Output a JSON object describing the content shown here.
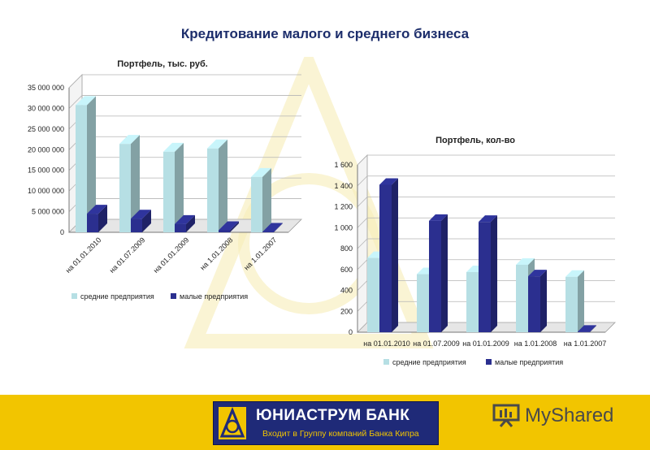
{
  "page": {
    "title": "Кредитование малого и среднего бизнеса"
  },
  "colors": {
    "title": "#1c2d6b",
    "medium": "#b6dfe4",
    "small": "#2b2f8f",
    "footer": "#f2c500",
    "logo_bg": "#1f2a78"
  },
  "chart_data": [
    {
      "type": "bar",
      "title": "Портфель, тыс. руб.",
      "categories": [
        "на 01.01.2010",
        "на 01.07.2009",
        "на 01.01.2009",
        "на 1.01.2008",
        "на 1.01.2007"
      ],
      "series": [
        {
          "name": "средние предприятия",
          "values": [
            30800000,
            21400000,
            19500000,
            20300000,
            13400000
          ]
        },
        {
          "name": "малые предприятия",
          "values": [
            4500000,
            3300000,
            2000000,
            500000,
            100000
          ]
        }
      ],
      "yticks": [
        "35 000 000",
        "30 000 000",
        "25 000 000",
        "20 000 000",
        "15 000 000",
        "10 000 000",
        "5 000 000",
        "0"
      ],
      "ylim": [
        0,
        35000000
      ],
      "grid": true,
      "legend": "bottom"
    },
    {
      "type": "bar",
      "title": "Портфель, кол-во",
      "categories": [
        "на 01.01.2010",
        "на 01.07.2009",
        "на 01.01.2009",
        "на 1.01.2008",
        "на 1.01.2007"
      ],
      "series": [
        {
          "name": "средние предприятия",
          "values": [
            710,
            555,
            575,
            645,
            530
          ]
        },
        {
          "name": "малые предприятия",
          "values": [
            1410,
            1065,
            1055,
            535,
            5
          ]
        }
      ],
      "yticks": [
        "1 600",
        "1 400",
        "1 200",
        "1 000",
        "800",
        "600",
        "400",
        "200",
        "0"
      ],
      "ylim": [
        0,
        1600
      ],
      "grid": true,
      "legend": "bottom"
    }
  ],
  "footer": {
    "bank_name": "ЮНИАСТРУМ БАНК",
    "bank_subtitle": "Входит в Группу компаний Банка Кипра",
    "brand": "MyShared"
  }
}
